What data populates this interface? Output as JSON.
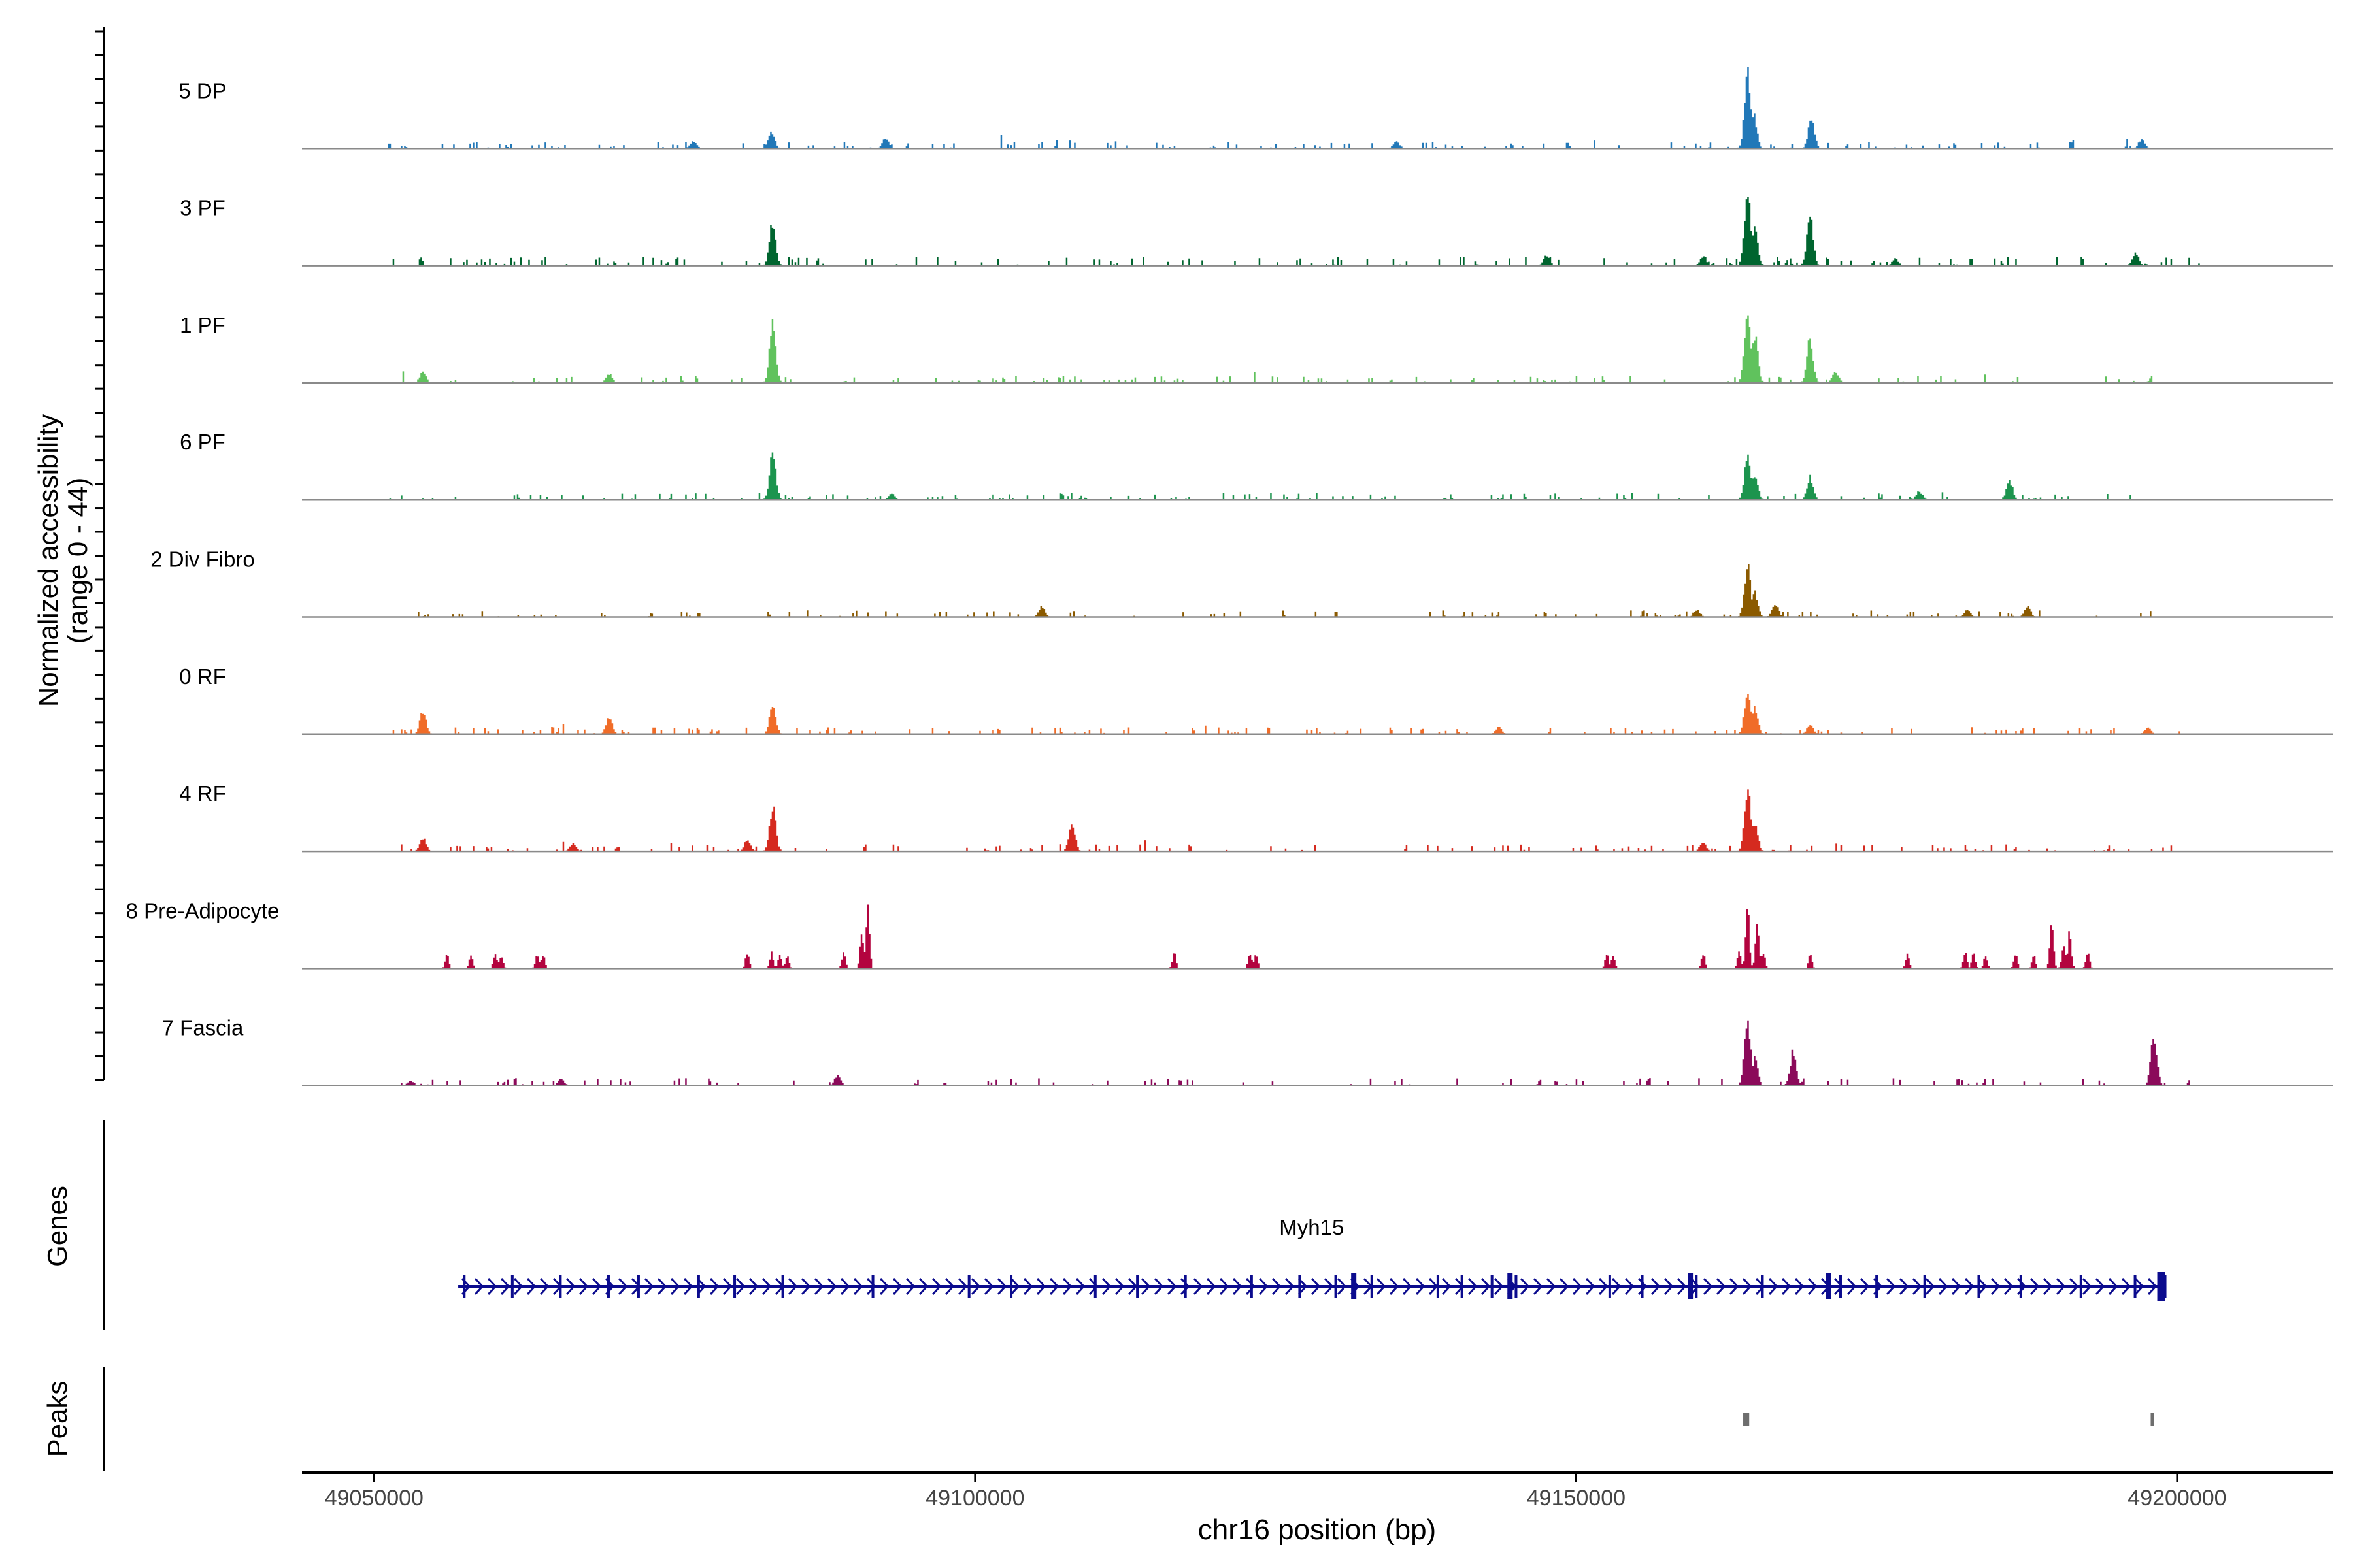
{
  "chart_data": {
    "type": "genome-coverage-tracks",
    "region": {
      "chrom": "chr16",
      "start": 49044000,
      "end": 49213000
    },
    "coverage_track": {
      "ylabel_line1": "Normalized accessibility",
      "ylabel_line2": "(range 0 - 44)",
      "yrange": [
        0,
        44
      ],
      "groups": [
        {
          "name": "5 DP",
          "color": "#2178b8",
          "span": [
            49051000,
            49200000
          ],
          "baseline": 0.4,
          "seed": 11,
          "peaks": [
            [
              49164200,
              44
            ],
            [
              49164700,
              20
            ],
            [
              49169500,
              17
            ],
            [
              49083000,
              10
            ],
            [
              49092500,
              6
            ],
            [
              49076500,
              4
            ],
            [
              49135000,
              4
            ],
            [
              49197000,
              5
            ]
          ]
        },
        {
          "name": "3 PF",
          "color": "#00652f",
          "span": [
            49051000,
            49203000
          ],
          "baseline": 0.8,
          "seed": 23,
          "peaks": [
            [
              49164200,
              44
            ],
            [
              49164800,
              22
            ],
            [
              49169400,
              28
            ],
            [
              49083100,
              26
            ],
            [
              49147500,
              6
            ],
            [
              49160500,
              5
            ],
            [
              49196500,
              7
            ],
            [
              49176500,
              4
            ]
          ]
        },
        {
          "name": "1 PF",
          "color": "#60c25d",
          "span": [
            49051000,
            49198000
          ],
          "baseline": 0.4,
          "seed": 37,
          "peaks": [
            [
              49164200,
              44
            ],
            [
              49164800,
              28
            ],
            [
              49169400,
              26
            ],
            [
              49083100,
              34
            ],
            [
              49054000,
              6
            ],
            [
              49069500,
              5
            ],
            [
              49198000,
              5
            ],
            [
              49171500,
              7
            ]
          ]
        },
        {
          "name": "6 PF",
          "color": "#1c944e",
          "span": [
            49051000,
            49197000
          ],
          "baseline": 0.4,
          "seed": 41,
          "peaks": [
            [
              49164200,
              27
            ],
            [
              49164800,
              15
            ],
            [
              49169400,
              13
            ],
            [
              49083100,
              28
            ],
            [
              49186000,
              11
            ],
            [
              49093000,
              4
            ],
            [
              49178500,
              5
            ]
          ]
        },
        {
          "name": "2 Div Fibro",
          "color": "#8b5a00",
          "span": [
            49052000,
            49201000
          ],
          "baseline": 0.4,
          "seed": 53,
          "peaks": [
            [
              49164200,
              29
            ],
            [
              49164800,
              14
            ],
            [
              49166500,
              8
            ],
            [
              49105500,
              6
            ],
            [
              49187500,
              6
            ],
            [
              49160000,
              4
            ],
            [
              49182500,
              4
            ]
          ]
        },
        {
          "name": "0 RF",
          "color": "#f06c28",
          "span": [
            49051000,
            49201000
          ],
          "baseline": 0.4,
          "seed": 67,
          "peaks": [
            [
              49164200,
              24
            ],
            [
              49164800,
              15
            ],
            [
              49054000,
              13
            ],
            [
              49069500,
              10
            ],
            [
              49083100,
              17
            ],
            [
              49169400,
              6
            ],
            [
              49143500,
              4
            ],
            [
              49197500,
              4
            ]
          ]
        },
        {
          "name": "4 RF",
          "color": "#d52a1f",
          "span": [
            49051000,
            49200000
          ],
          "baseline": 0.5,
          "seed": 71,
          "peaks": [
            [
              49164200,
              37
            ],
            [
              49164800,
              16
            ],
            [
              49083100,
              26
            ],
            [
              49081000,
              7
            ],
            [
              49108000,
              16
            ],
            [
              49054000,
              8
            ],
            [
              49066500,
              5
            ],
            [
              49160500,
              5
            ]
          ]
        },
        {
          "name": "8 Pre-Adipocyte",
          "color": "#b3043f",
          "span": [
            49055000,
            49200000
          ],
          "baseline": 0,
          "seed": 83,
          "sparse": true,
          "peaks": [
            [
              49091000,
              37
            ],
            [
              49090500,
              20
            ],
            [
              49164200,
              36
            ],
            [
              49165000,
              26
            ],
            [
              49189500,
              28
            ],
            [
              49191000,
              22
            ],
            [
              49056000,
              8
            ],
            [
              49058000,
              8
            ],
            [
              49060000,
              9
            ],
            [
              49060500,
              8
            ],
            [
              49063500,
              8
            ],
            [
              49064000,
              8
            ],
            [
              49081000,
              10
            ],
            [
              49083000,
              9
            ],
            [
              49083700,
              8
            ],
            [
              49084300,
              8
            ],
            [
              49089000,
              9
            ],
            [
              49116500,
              9
            ],
            [
              49122800,
              9
            ],
            [
              49123300,
              8
            ],
            [
              49152500,
              9
            ],
            [
              49153000,
              8
            ],
            [
              49160500,
              9
            ],
            [
              49163500,
              10
            ],
            [
              49165500,
              10
            ],
            [
              49169400,
              8
            ],
            [
              49177500,
              8
            ],
            [
              49182300,
              10
            ],
            [
              49183000,
              9
            ],
            [
              49184000,
              8
            ],
            [
              49186500,
              9
            ],
            [
              49188000,
              8
            ],
            [
              49190500,
              15
            ],
            [
              49192500,
              10
            ]
          ]
        },
        {
          "name": "7 Fascia",
          "color": "#8b0a5a",
          "span": [
            49051000,
            49203000
          ],
          "baseline": 0.6,
          "seed": 97,
          "peaks": [
            [
              49164200,
              38
            ],
            [
              49164800,
              16
            ],
            [
              49168000,
              20
            ],
            [
              49198000,
              30
            ],
            [
              49088500,
              6
            ],
            [
              49053000,
              3
            ],
            [
              49065500,
              4
            ]
          ]
        }
      ]
    },
    "gene_track": {
      "label": "Genes",
      "genes": [
        {
          "name": "Myh15",
          "start": 49057000,
          "end": 49199000,
          "strand": "+"
        }
      ],
      "exons": [
        49057500,
        49061500,
        49065500,
        49069500,
        49072000,
        49077000,
        49080000,
        49084000,
        49091500,
        49099500,
        49103000,
        49110000,
        49113500,
        49117500,
        49123000,
        49127000,
        49130000,
        49133000,
        49138500,
        49140500,
        49143000,
        49145000,
        49152800,
        49155500,
        49160000,
        49165500,
        49172000,
        49175000,
        49179000,
        49183500,
        49187000,
        49192000,
        49196500,
        49199000
      ],
      "wide_exons": [
        49131500,
        49144500,
        49159500,
        49171000
      ]
    },
    "peak_track": {
      "label": "Peaks",
      "peaks": [
        {
          "start": 49163900,
          "end": 49164400
        },
        {
          "start": 49197800,
          "end": 49198100
        }
      ]
    },
    "x_axis": {
      "label": "chr16 position (bp)",
      "ticks": [
        49050000,
        49100000,
        49150000,
        49200000
      ],
      "tick_labels": [
        "49050000",
        "49100000",
        "49150000",
        "49200000"
      ]
    }
  }
}
